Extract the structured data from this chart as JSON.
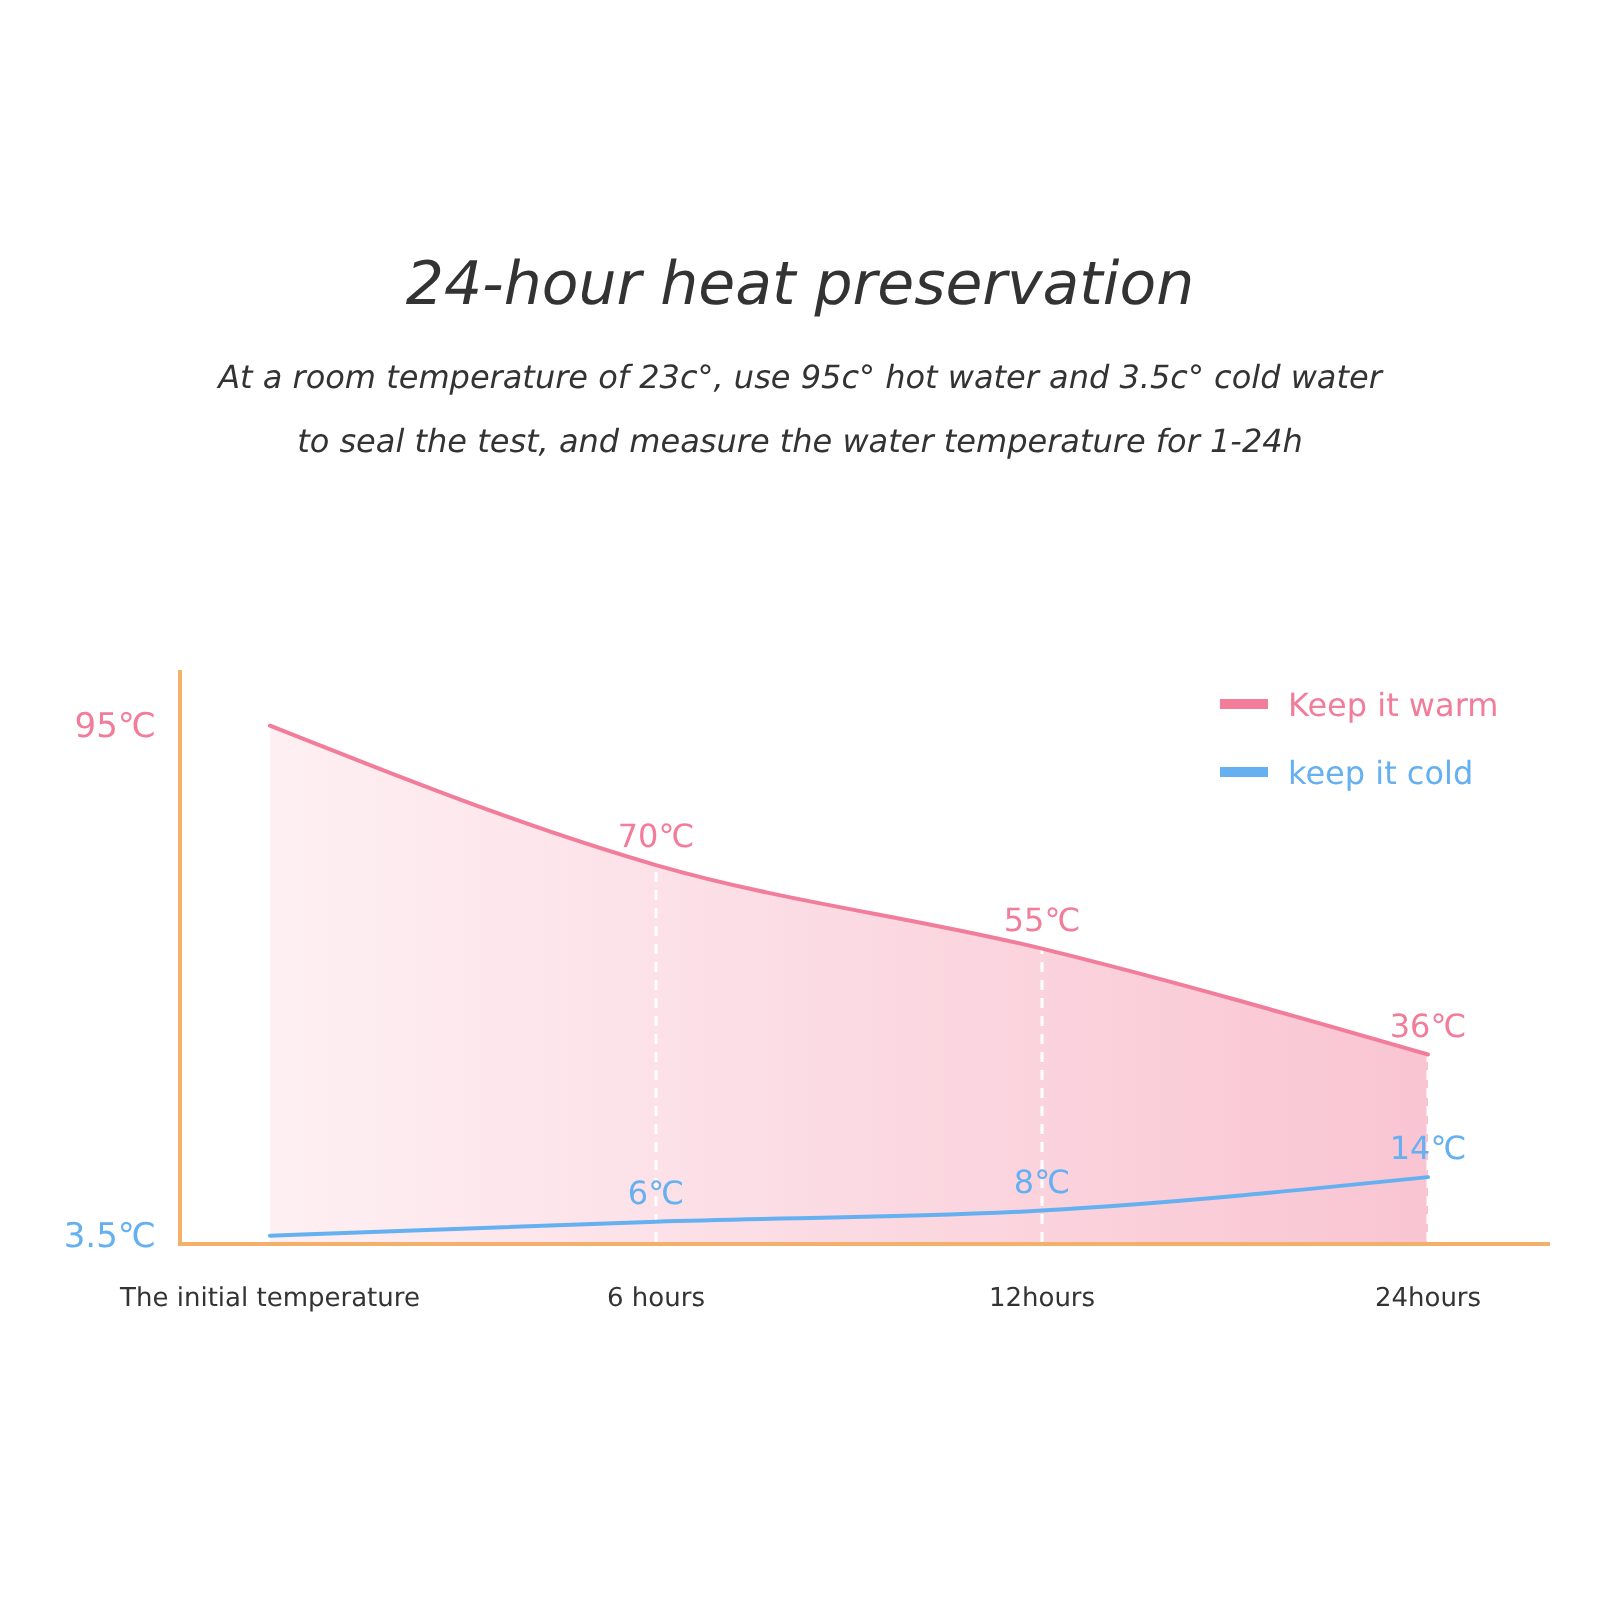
{
  "chart_data": {
    "type": "line",
    "title": "24-hour heat preservation",
    "subtitle": "At a room temperature of 23c°, use 95c° hot water and 3.5c° cold water\nto seal the test, and measure the water temperature for 1-24h",
    "categories": [
      "The initial temperature",
      "6 hours",
      "12hours",
      "24hours"
    ],
    "series": [
      {
        "name": "Keep it warm",
        "type": "area",
        "color": "#f27d9b",
        "values": [
          95,
          70,
          55,
          36
        ],
        "value_labels": [
          null,
          "70℃",
          "55℃",
          "36℃"
        ]
      },
      {
        "name": "keep it cold",
        "color": "#64b0f0",
        "values": [
          3.5,
          6,
          8,
          14
        ],
        "value_labels": [
          null,
          "6℃",
          "8℃",
          "14℃"
        ]
      }
    ],
    "ylim": [
      2,
      105
    ],
    "yticks": [
      {
        "value": 95,
        "label": "95℃"
      },
      {
        "value": 3.5,
        "label": "3.5℃"
      }
    ],
    "ref_lines": [
      {
        "axis": "x",
        "value": "6 hours",
        "color": "#ffffff",
        "line_style": "dashed"
      },
      {
        "axis": "x",
        "value": "12hours",
        "color": "#ffffff",
        "line_style": "dashed"
      },
      {
        "axis": "x",
        "value": "24hours",
        "color": "#ffffff",
        "line_style": "dashed"
      }
    ],
    "legend": "top right"
  }
}
